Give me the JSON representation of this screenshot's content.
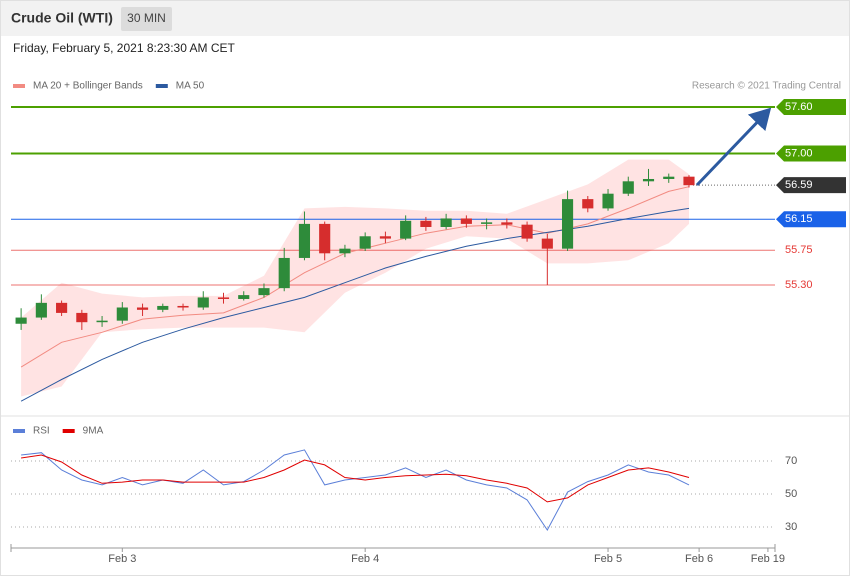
{
  "header": {
    "title": "Crude Oil (WTI)",
    "interval": "30 MIN",
    "datetime": "Friday, February 5, 2021 8:23:30 AM CET"
  },
  "chart_data": [
    {
      "type": "candlestick",
      "annotation": "Research © 2021 Trading Central",
      "x": [
        -10,
        -8,
        -6,
        -4,
        -2,
        0,
        2,
        4,
        6,
        8,
        10,
        12,
        14,
        16,
        18,
        20,
        22,
        24,
        26,
        28,
        30,
        32,
        34,
        36,
        38,
        40,
        42,
        44,
        46,
        48,
        50,
        52,
        54,
        56
      ],
      "open": [
        54.8,
        54.88,
        55.07,
        54.94,
        54.82,
        54.84,
        55.01,
        54.98,
        55.03,
        55.01,
        55.14,
        55.12,
        55.17,
        55.26,
        55.65,
        56.09,
        55.71,
        55.77,
        55.93,
        55.9,
        56.13,
        56.05,
        56.16,
        56.09,
        56.11,
        56.08,
        55.9,
        55.77,
        56.41,
        56.29,
        56.48,
        56.64,
        56.67,
        56.7
      ],
      "high": [
        55.0,
        55.18,
        55.1,
        54.98,
        54.9,
        55.08,
        55.06,
        55.06,
        55.06,
        55.22,
        55.2,
        55.22,
        55.32,
        55.78,
        56.25,
        56.12,
        55.82,
        55.98,
        55.99,
        56.2,
        56.18,
        56.22,
        56.2,
        56.16,
        56.16,
        56.12,
        55.96,
        56.52,
        56.45,
        56.54,
        56.7,
        56.8,
        56.74,
        56.72
      ],
      "low": [
        54.72,
        54.85,
        54.9,
        54.72,
        54.76,
        54.8,
        54.9,
        54.95,
        54.97,
        54.98,
        55.06,
        55.1,
        55.14,
        55.22,
        55.62,
        55.62,
        55.66,
        55.74,
        55.84,
        55.88,
        56.0,
        56.02,
        56.04,
        56.02,
        56.03,
        55.86,
        55.3,
        55.74,
        56.24,
        56.26,
        56.45,
        56.58,
        56.62,
        56.56
      ],
      "close": [
        54.88,
        55.07,
        54.94,
        54.82,
        54.84,
        55.01,
        54.98,
        55.03,
        55.01,
        55.14,
        55.12,
        55.17,
        55.26,
        55.65,
        56.09,
        55.71,
        55.77,
        55.93,
        55.9,
        56.13,
        56.05,
        56.16,
        56.09,
        56.11,
        56.08,
        55.9,
        55.77,
        56.41,
        56.29,
        56.48,
        56.64,
        56.67,
        56.7,
        56.59
      ],
      "up_color": "#2e8b3a",
      "down_color": "#d62d2d",
      "series": [
        {
          "name": "MA 20 + Bollinger Bands",
          "color": "#f28b82",
          "x": [
            -10,
            -6,
            -2,
            2,
            6,
            10,
            14,
            18,
            22,
            26,
            30,
            34,
            38,
            42,
            46,
            50,
            54,
            56
          ],
          "values": [
            54.24,
            54.56,
            54.69,
            54.86,
            54.91,
            54.94,
            55.14,
            55.46,
            55.71,
            55.84,
            55.97,
            56.06,
            56.08,
            55.97,
            56.09,
            56.29,
            56.51,
            56.57
          ],
          "upper": [
            54.88,
            55.33,
            55.19,
            55.14,
            55.16,
            55.16,
            55.42,
            56.29,
            56.31,
            56.29,
            56.26,
            56.26,
            56.22,
            56.41,
            56.6,
            56.92,
            56.92,
            56.73
          ],
          "lower": [
            53.86,
            53.99,
            54.69,
            54.73,
            54.75,
            54.75,
            54.75,
            54.69,
            55.2,
            55.46,
            55.77,
            55.93,
            55.9,
            55.58,
            55.58,
            55.62,
            55.84,
            56.09
          ]
        },
        {
          "name": "MA 50",
          "color": "#2c5aa0",
          "x": [
            -10,
            -6,
            -2,
            2,
            6,
            10,
            14,
            18,
            22,
            26,
            30,
            34,
            38,
            42,
            46,
            50,
            54,
            56
          ],
          "values": [
            53.8,
            54.08,
            54.34,
            54.56,
            54.73,
            54.88,
            55.01,
            55.14,
            55.33,
            55.52,
            55.67,
            55.8,
            55.9,
            55.98,
            56.06,
            56.16,
            56.25,
            56.29
          ]
        }
      ],
      "levels": [
        {
          "value": 57.6,
          "label": "57.60",
          "color": "#4ca000",
          "style": "box",
          "line": "solid"
        },
        {
          "value": 57.0,
          "label": "57.00",
          "color": "#4ca000",
          "style": "box",
          "line": "solid"
        },
        {
          "value": 56.59,
          "label": "56.59",
          "color": "#333333",
          "style": "box",
          "line": "dotted"
        },
        {
          "value": 56.15,
          "label": "56.15",
          "color": "#1a62e8",
          "style": "box",
          "line": "solid"
        },
        {
          "value": 55.75,
          "label": "55.75",
          "color": "#e53935",
          "style": "text",
          "line": "solid"
        },
        {
          "value": 55.3,
          "label": "55.30",
          "color": "#e53935",
          "style": "text",
          "line": "solid"
        }
      ],
      "xlim": [
        -11,
        64.5
      ],
      "ylim": [
        53.66,
        57.755
      ]
    },
    {
      "type": "line",
      "x": [
        -10,
        -8,
        -6,
        -4,
        -2,
        0,
        2,
        4,
        6,
        8,
        10,
        12,
        14,
        16,
        18,
        20,
        22,
        24,
        26,
        28,
        30,
        32,
        34,
        36,
        38,
        40,
        42,
        44,
        46,
        48,
        50,
        52,
        54,
        56
      ],
      "series": [
        {
          "name": "RSI",
          "color": "#5b7fd8",
          "values": [
            73.6,
            75,
            64.5,
            58.5,
            55.5,
            60,
            55.5,
            58.5,
            56.5,
            64.5,
            55.5,
            57.5,
            64.5,
            73.6,
            76.7,
            55.5,
            58.5,
            60,
            61.5,
            65.8,
            60,
            64.5,
            58.5,
            55.5,
            53.6,
            46.4,
            28.2,
            51.2,
            57.5,
            61.5,
            67.6,
            63.3,
            61.5,
            55.5
          ]
        },
        {
          "name": "9MA",
          "color": "#e00000",
          "values": [
            71.8,
            73.6,
            69.4,
            61.5,
            56.5,
            57.2,
            58.5,
            58.5,
            57.2,
            57.2,
            57.2,
            57.2,
            60,
            64.5,
            70.6,
            67.6,
            60,
            58.5,
            60,
            61,
            61.5,
            62,
            61,
            58.5,
            56.5,
            53.6,
            45.2,
            47.6,
            55.5,
            60,
            64.5,
            65.8,
            63.3,
            60
          ]
        }
      ],
      "xlim": [
        -11,
        64.5
      ],
      "ylim": [
        19.1,
        82.7
      ],
      "yticks": [
        30,
        50,
        70
      ],
      "grid": true,
      "xticks": [
        {
          "value": 0,
          "label": "Feb 3"
        },
        {
          "value": 24,
          "label": "Feb 4"
        },
        {
          "value": 48,
          "label": "Feb 5"
        },
        {
          "value": 57,
          "label": "Feb 6"
        },
        {
          "value": 63.8,
          "label": "Feb 19"
        }
      ]
    }
  ]
}
